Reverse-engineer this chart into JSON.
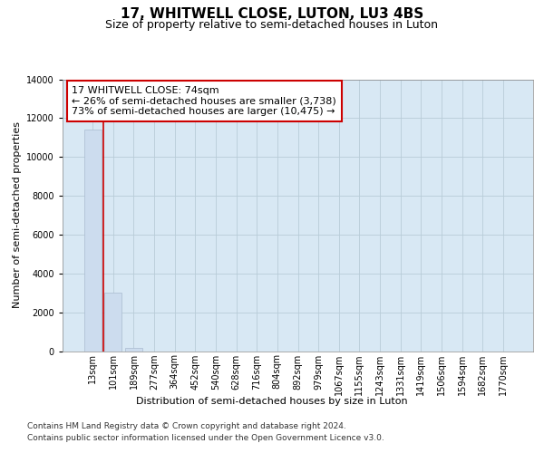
{
  "title": "17, WHITWELL CLOSE, LUTON, LU3 4BS",
  "subtitle": "Size of property relative to semi-detached houses in Luton",
  "xlabel": "Distribution of semi-detached houses by size in Luton",
  "ylabel": "Number of semi-detached properties",
  "bar_labels": [
    "13sqm",
    "101sqm",
    "189sqm",
    "277sqm",
    "364sqm",
    "452sqm",
    "540sqm",
    "628sqm",
    "716sqm",
    "804sqm",
    "892sqm",
    "979sqm",
    "1067sqm",
    "1155sqm",
    "1243sqm",
    "1331sqm",
    "1419sqm",
    "1506sqm",
    "1594sqm",
    "1682sqm",
    "1770sqm"
  ],
  "bar_values": [
    11400,
    3000,
    150,
    0,
    0,
    0,
    0,
    0,
    0,
    0,
    0,
    0,
    0,
    0,
    0,
    0,
    0,
    0,
    0,
    0,
    0
  ],
  "bar_color": "#ccdcee",
  "bar_edge_color": "#aabbd0",
  "property_sqm": 74,
  "annotation_line1": "17 WHITWELL CLOSE: 74sqm",
  "annotation_line2": "← 26% of semi-detached houses are smaller (3,738)",
  "annotation_line3": "73% of semi-detached houses are larger (10,475) →",
  "annotation_box_color": "white",
  "annotation_box_edge_color": "#cc0000",
  "red_line_color": "#cc0000",
  "ylim": [
    0,
    14000
  ],
  "yticks": [
    0,
    2000,
    4000,
    6000,
    8000,
    10000,
    12000,
    14000
  ],
  "grid_color": "#b8ccd8",
  "bg_color": "#d8e8f4",
  "footer_line1": "Contains HM Land Registry data © Crown copyright and database right 2024.",
  "footer_line2": "Contains public sector information licensed under the Open Government Licence v3.0.",
  "title_fontsize": 11,
  "subtitle_fontsize": 9,
  "axis_label_fontsize": 8,
  "tick_fontsize": 7,
  "annotation_fontsize": 8,
  "footer_fontsize": 6.5
}
